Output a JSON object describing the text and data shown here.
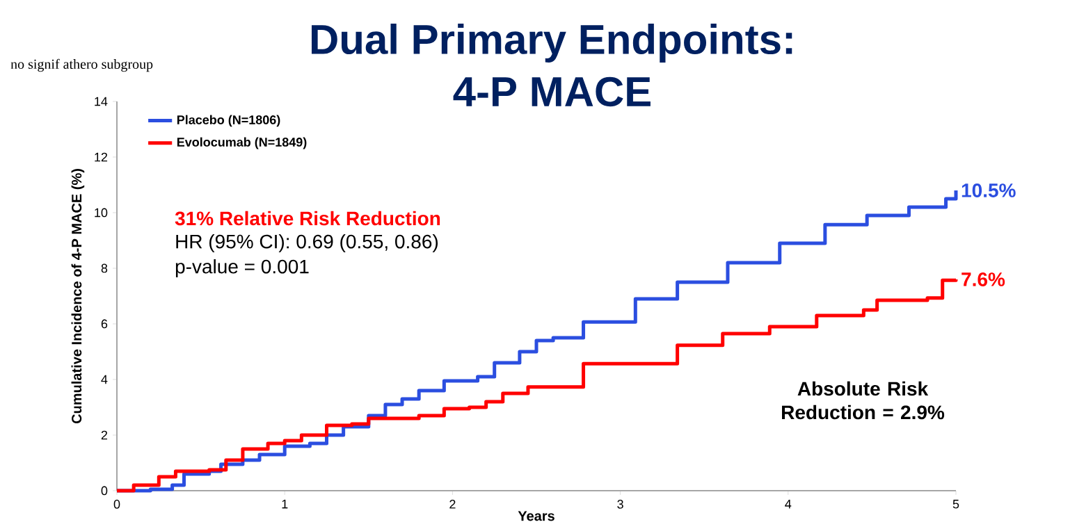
{
  "chart_data": {
    "type": "step",
    "title": "Dual Primary Endpoints:",
    "subtitle": "4-P MACE",
    "xlabel": "Years",
    "ylabel": "Cumulative Incidence of 4-P MACE (%)",
    "xlim": [
      0,
      5
    ],
    "xticks": [
      0,
      1,
      2,
      3,
      4,
      5
    ],
    "ylim": [
      0,
      14
    ],
    "yticks": [
      0,
      2,
      4,
      6,
      8,
      10,
      12,
      14
    ],
    "grid": false,
    "legend": "top left",
    "marker": "none",
    "line_style": "solid",
    "series": [
      {
        "name": "Placebo (N=1806)",
        "color": "#2b4ee0",
        "x": [
          0,
          0.2,
          0.33,
          0.4,
          0.55,
          0.62,
          0.75,
          0.85,
          1.0,
          1.15,
          1.25,
          1.35,
          1.5,
          1.6,
          1.7,
          1.8,
          1.95,
          2.15,
          2.25,
          2.4,
          2.5,
          2.6,
          2.78,
          3.09,
          3.34,
          3.64,
          3.95,
          4.22,
          4.47,
          4.72,
          4.94,
          5.0
        ],
        "values": [
          0,
          0.05,
          0.2,
          0.6,
          0.7,
          0.95,
          1.1,
          1.3,
          1.6,
          1.7,
          2.0,
          2.3,
          2.7,
          3.1,
          3.3,
          3.6,
          3.95,
          4.1,
          4.6,
          5.0,
          5.4,
          5.5,
          6.07,
          6.9,
          7.5,
          8.2,
          8.9,
          9.57,
          9.9,
          10.2,
          10.5,
          10.8
        ]
      },
      {
        "name": "Evolocumab (N=1849)",
        "color": "#ff0000",
        "x": [
          0,
          0.1,
          0.25,
          0.35,
          0.55,
          0.65,
          0.75,
          0.9,
          1.0,
          1.1,
          1.25,
          1.4,
          1.5,
          1.8,
          1.95,
          2.1,
          2.2,
          2.3,
          2.45,
          2.78,
          3.34,
          3.61,
          3.89,
          4.17,
          4.45,
          4.53,
          4.83,
          4.92,
          5.0
        ],
        "values": [
          0,
          0.2,
          0.5,
          0.7,
          0.75,
          1.1,
          1.5,
          1.7,
          1.8,
          2.0,
          2.35,
          2.4,
          2.6,
          2.7,
          2.95,
          3.0,
          3.2,
          3.5,
          3.73,
          4.57,
          5.23,
          5.65,
          5.9,
          6.3,
          6.5,
          6.85,
          6.93,
          7.57,
          7.6
        ]
      }
    ],
    "annotations": [
      "no signif athero subgroup",
      "31% Relative Risk Reduction",
      "HR (95% CI): 0.69 (0.55, 0.86)",
      "p-value = 0.001",
      "Absolute Risk Reduction = 2.9%",
      {
        "text": "10.5%",
        "x": 5,
        "y": 10.8
      },
      {
        "text": "7.6%",
        "x": 5,
        "y": 7.6
      }
    ]
  }
}
